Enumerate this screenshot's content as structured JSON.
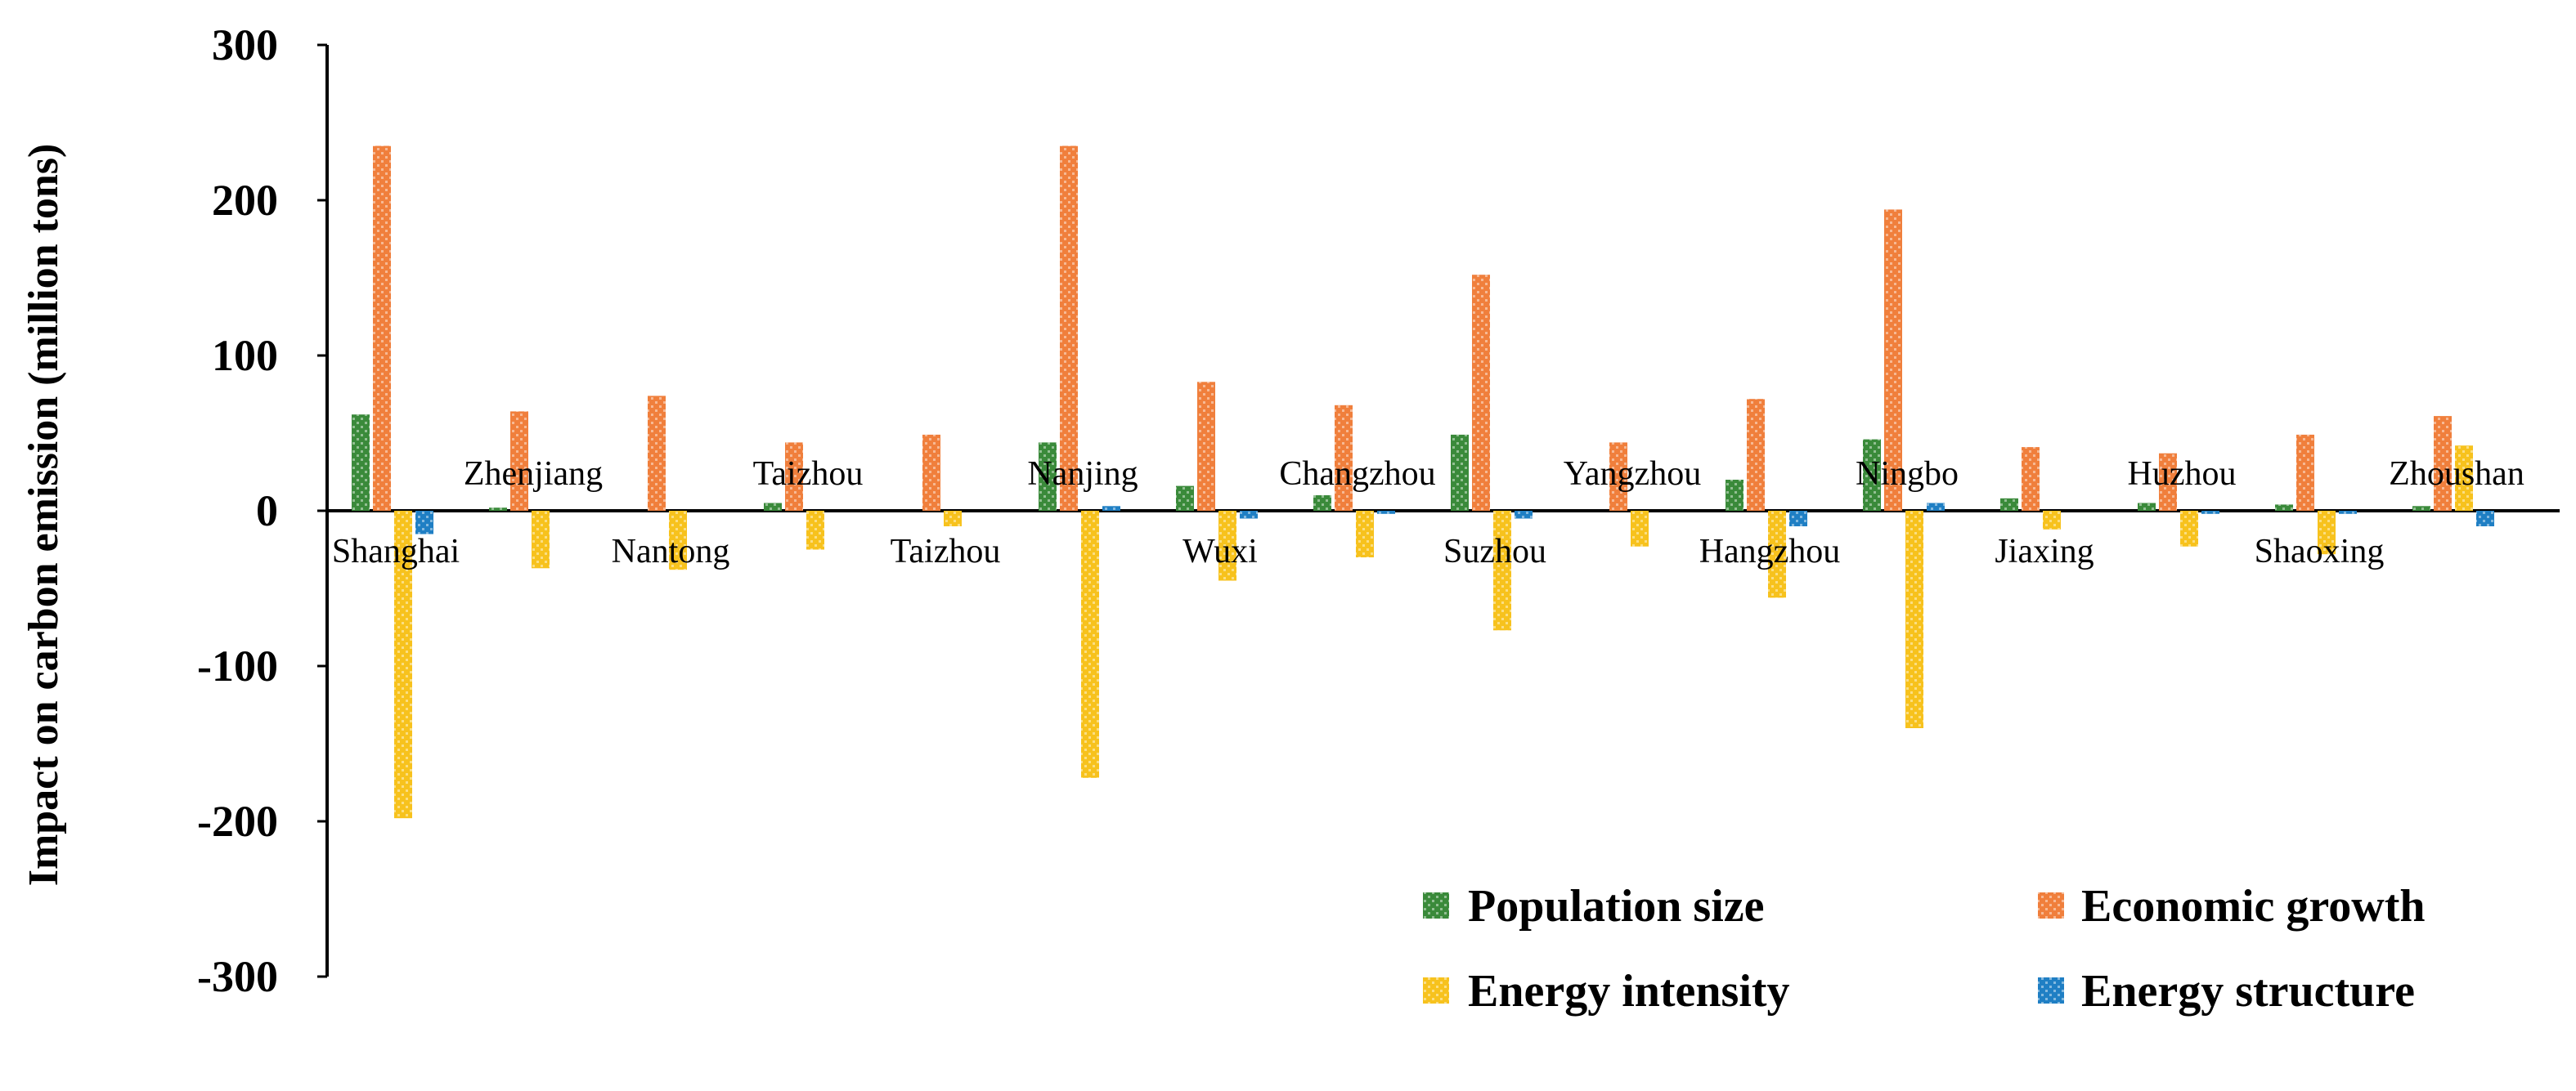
{
  "chart_data": {
    "type": "bar",
    "title": "",
    "xlabel": "",
    "ylabel": "Impact on carbon emission (million tons)",
    "ylim": [
      -300,
      300
    ],
    "yticks": [
      300,
      200,
      100,
      0,
      -100,
      -200,
      -300
    ],
    "grid": false,
    "legend_position": "bottom-right",
    "categories": [
      "Shanghai",
      "Zhenjiang",
      "Nantong",
      "Taizhou",
      "Taizhou",
      "Nanjing",
      "Wuxi",
      "Changzhou",
      "Suzhou",
      "Yangzhou",
      "Hangzhou",
      "Ningbo",
      "Jiaxing",
      "Huzhou",
      "Shaoxing",
      "Zhoushan"
    ],
    "series": [
      {
        "name": "Population size",
        "color": "#3a8a3a",
        "values": [
          62,
          2,
          0,
          5,
          0,
          44,
          16,
          10,
          49,
          0,
          20,
          46,
          8,
          5,
          4,
          3
        ]
      },
      {
        "name": "Economic growth",
        "color": "#f07f3c",
        "values": [
          235,
          64,
          74,
          44,
          49,
          235,
          83,
          68,
          152,
          44,
          72,
          194,
          41,
          37,
          49,
          61
        ]
      },
      {
        "name": "Energy intensity",
        "color": "#f7c21d",
        "values": [
          -198,
          -37,
          -38,
          -25,
          -10,
          -172,
          -45,
          -30,
          -77,
          -23,
          -56,
          -140,
          -12,
          -23,
          -28,
          42
        ]
      },
      {
        "name": "Energy structure",
        "color": "#1f7fc4",
        "values": [
          -15,
          0,
          0,
          0,
          0,
          3,
          -5,
          -2,
          -5,
          0,
          -10,
          5,
          0,
          -2,
          -2,
          -10
        ]
      }
    ]
  }
}
